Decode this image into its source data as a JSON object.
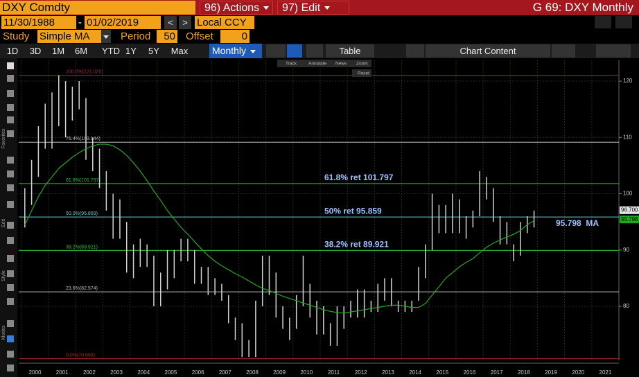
{
  "toolbar": {
    "security": "DXY Comdty",
    "actions": "96) Actions",
    "edit": "97) Edit",
    "window_title": "G 69: DXY Monthly",
    "start_date": "11/30/1988",
    "date_sep": "-",
    "end_date": "01/02/2019",
    "prev": "<",
    "next": ">",
    "currency": "Local CCY",
    "study_label": "Study",
    "study": "Simple MA",
    "period_label": "Period",
    "period": "50",
    "offset_label": "Offset",
    "offset": "0",
    "ranges": [
      "1D",
      "3D",
      "1M",
      "6M",
      "YTD",
      "1Y",
      "5Y",
      "Max"
    ],
    "frequency": "Monthly",
    "table": "Table",
    "chart_content": "Chart Content"
  },
  "mini_toolbar": {
    "buttons": [
      "Track",
      "Annotate",
      "News",
      "Zoom"
    ],
    "reset": "Reset"
  },
  "sidebar": {
    "sections": [
      "Favorites",
      "Edit",
      "Style",
      "Modes"
    ]
  },
  "chart_data": {
    "type": "range",
    "x": [
      2000.125,
      2000.375,
      2000.625,
      2000.875,
      2001.125,
      2001.375,
      2001.625,
      2001.875,
      2002.125,
      2002.375,
      2002.625,
      2002.875,
      2003.125,
      2003.375,
      2003.625,
      2003.875,
      2004.125,
      2004.375,
      2004.625,
      2004.875,
      2005.125,
      2005.375,
      2005.625,
      2005.875,
      2006.125,
      2006.375,
      2006.625,
      2006.875,
      2007.125,
      2007.375,
      2007.625,
      2007.875,
      2008.125,
      2008.375,
      2008.625,
      2008.875,
      2009.125,
      2009.375,
      2009.625,
      2009.875,
      2010.125,
      2010.375,
      2010.625,
      2010.875,
      2011.125,
      2011.375,
      2011.625,
      2011.875,
      2012.125,
      2012.375,
      2012.625,
      2012.875,
      2013.125,
      2013.375,
      2013.625,
      2013.875,
      2014.125,
      2014.375,
      2014.625,
      2014.875,
      2015.125,
      2015.375,
      2015.625,
      2015.875,
      2016.125,
      2016.375,
      2016.625,
      2016.875,
      2017.125,
      2017.375,
      2017.625,
      2017.875,
      2018.125,
      2018.375,
      2018.625,
      2018.875
    ],
    "series": [
      {
        "color": "#d4d4d4",
        "high": [
          101,
          106,
          112,
          116,
          118,
          121,
          120,
          119,
          120,
          117,
          110,
          108,
          104,
          100,
          99,
          95,
          91,
          92,
          91,
          89,
          86,
          90,
          90,
          92,
          92,
          90,
          87,
          87,
          85,
          84,
          82,
          78,
          77,
          74,
          81,
          89,
          89,
          86,
          80,
          78,
          82,
          89,
          84,
          81,
          80,
          77,
          80,
          80,
          81,
          83,
          83,
          81,
          84,
          85,
          85,
          81,
          81,
          81,
          87,
          91,
          100,
          98,
          98,
          100,
          99,
          96,
          97,
          104,
          103,
          101,
          96,
          95,
          91,
          95,
          96,
          97
        ],
        "low": [
          94,
          98,
          103,
          108,
          108,
          112,
          110,
          113,
          115,
          106,
          104,
          101,
          97,
          92,
          92,
          86,
          85,
          87,
          87,
          80,
          80,
          83,
          85,
          88,
          88,
          84,
          84,
          82,
          82,
          81,
          77,
          74,
          71,
          71,
          71,
          80,
          82,
          78,
          76,
          74,
          76,
          80,
          78,
          75,
          75,
          73,
          73,
          76,
          78,
          78,
          78,
          79,
          79,
          81,
          80,
          79,
          79,
          79,
          81,
          85,
          90,
          93,
          93,
          93,
          93,
          92,
          94,
          96,
          99,
          95,
          91,
          91,
          88,
          89,
          93,
          94
        ]
      },
      {
        "color": "#21a821",
        "values": [
          94.5,
          97,
          99.5,
          101.5,
          103,
          104.5,
          105.5,
          106.5,
          107.3,
          108,
          108.5,
          108.8,
          108.8,
          108.5,
          107.8,
          106.8,
          105.5,
          104,
          102.3,
          100.5,
          98.8,
          97,
          95.5,
          94,
          92.8,
          91.5,
          90.2,
          89,
          88,
          87.2,
          86.5,
          85.8,
          85.2,
          84.5,
          83.8,
          83.2,
          82.8,
          82.3,
          81.8,
          81.4,
          81,
          80.6,
          80.2,
          79.8,
          79.4,
          79.1,
          78.9,
          78.8,
          79,
          79.2,
          79.4,
          79.6,
          79.8,
          80,
          80.2,
          80.2,
          80,
          79.8,
          79.8,
          80.5,
          82,
          83.5,
          85,
          86,
          87,
          87.8,
          88.5,
          89.5,
          90.5,
          91.2,
          91.8,
          92.3,
          92.8,
          93.5,
          94.5,
          95.2
        ]
      }
    ],
    "xlim": [
      1999.9,
      2022.0
    ],
    "xticks": [
      2000,
      2001,
      2002,
      2003,
      2004,
      2005,
      2006,
      2007,
      2008,
      2009,
      2010,
      2011,
      2012,
      2013,
      2014,
      2015,
      2016,
      2017,
      2018,
      2019,
      2020,
      2021
    ],
    "ylim": [
      70.4,
      123.7
    ],
    "yticks": [
      80,
      90,
      100,
      110,
      120
    ],
    "grid": true,
    "fib_levels": [
      {
        "value": 121.02,
        "label": "100.0%(121.020)",
        "color": "#b3262b"
      },
      {
        "value": 109.144,
        "label": "76.4%(109.144)",
        "color": "#bdbdbd"
      },
      {
        "value": 101.797,
        "label": "61.8%(101.797)",
        "color": "#2ec22e"
      },
      {
        "value": 95.859,
        "label": "50.0%(95.859)",
        "color": "#5fd0d0"
      },
      {
        "value": 89.921,
        "label": "38.2%(89.921)",
        "color": "#2ec22e"
      },
      {
        "value": 82.574,
        "label": "23.6%(82.574)",
        "color": "#bdbdbd"
      },
      {
        "value": 70.698,
        "label": "0.0%(70.698)",
        "color": "#b3262b"
      }
    ],
    "annotations": [
      {
        "value": 101.797,
        "text": "61.8% ret 101.797"
      },
      {
        "value": 95.859,
        "text": "50% ret 95.859"
      },
      {
        "value": 89.921,
        "text": "38.2% ret 89.921"
      }
    ],
    "ma_annotation": {
      "value": 95.798,
      "text": "95.798  MA"
    },
    "price_tags": [
      {
        "value": 96.7,
        "label": "96.700",
        "color": "#e6e6e6"
      },
      {
        "value": 95.798,
        "label": "95.798",
        "color": "#21a821"
      }
    ]
  }
}
